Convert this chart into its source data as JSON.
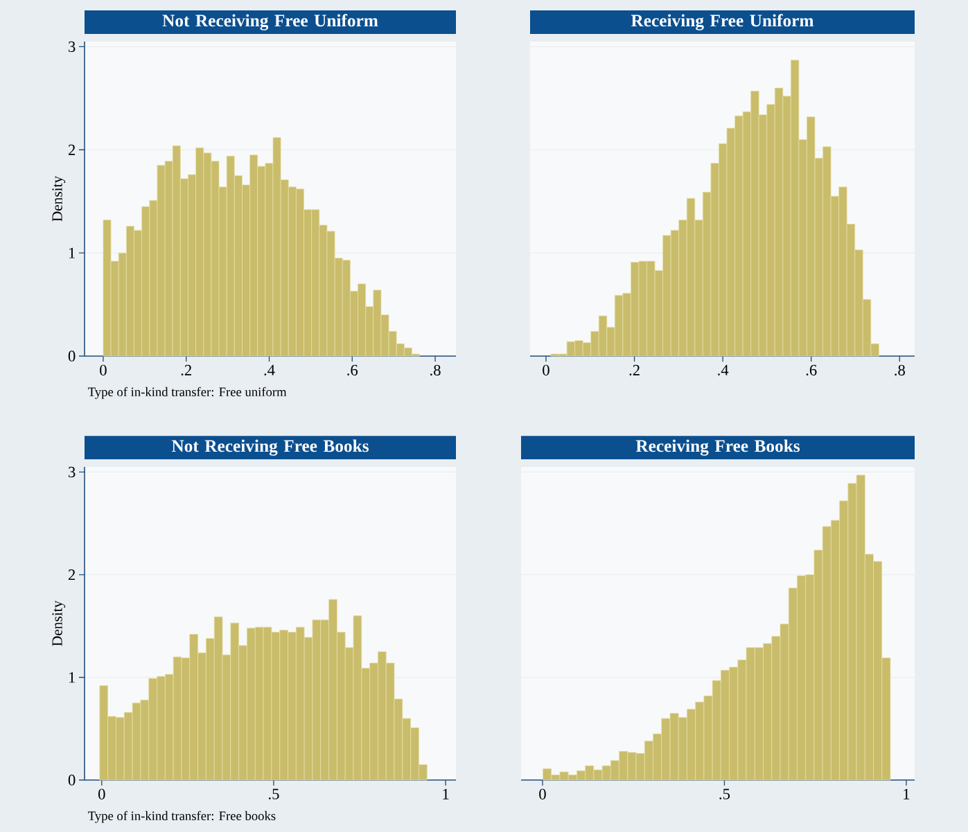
{
  "chart_data": [
    {
      "type": "histogram",
      "title": "Not Receiving Free Uniform",
      "xlabel": "Type of in-kind transfer: Free uniform",
      "ylabel": "Density",
      "color": "#c9bc6b",
      "grid": "y",
      "bins": [
        0,
        0.0186,
        0.0372,
        0.0558,
        0.0744,
        0.093,
        0.1116,
        0.1302,
        0.1488,
        0.1674,
        0.186,
        0.2046,
        0.2232,
        0.2418,
        0.2604,
        0.279,
        0.2976,
        0.3162,
        0.3348,
        0.3534,
        0.372,
        0.3906,
        0.4092,
        0.4278,
        0.4464,
        0.465,
        0.4836,
        0.5022,
        0.5208,
        0.5394,
        0.558,
        0.5766,
        0.5952,
        0.6138,
        0.6324,
        0.651,
        0.6696,
        0.6882,
        0.7068,
        0.7254,
        0.744,
        0.7626
      ],
      "values": [
        1.32,
        0.92,
        1.0,
        1.26,
        1.22,
        1.45,
        1.51,
        1.85,
        1.89,
        2.04,
        1.72,
        1.76,
        2.02,
        1.97,
        1.89,
        1.64,
        1.94,
        1.75,
        1.66,
        1.95,
        1.84,
        1.87,
        2.12,
        1.71,
        1.64,
        1.62,
        1.42,
        1.42,
        1.27,
        1.21,
        0.95,
        0.93,
        0.63,
        0.7,
        0.48,
        0.64,
        0.4,
        0.24,
        0.12,
        0.08,
        0.02
      ],
      "xlim": [
        -0.045,
        0.85
      ],
      "xticks": [
        0,
        {
          "value": 0.2,
          "label": ".2"
        },
        {
          "value": 0.4,
          "label": ".4"
        },
        {
          "value": 0.6,
          "label": ".6"
        },
        {
          "value": 0.8,
          "label": ".8"
        }
      ],
      "ylim": [
        0,
        3.05
      ],
      "yticks": [
        0,
        1,
        2,
        3
      ]
    },
    {
      "type": "histogram",
      "title": "Receiving Free Uniform",
      "color": "#c9bc6b",
      "grid": "y",
      "tick_labels": "x",
      "bins": [
        0.011,
        0.0291,
        0.0472,
        0.0653,
        0.0834,
        0.1015,
        0.1196,
        0.1377,
        0.1558,
        0.1739,
        0.192,
        0.2101,
        0.2282,
        0.2463,
        0.2644,
        0.2825,
        0.3006,
        0.3187,
        0.3368,
        0.3549,
        0.373,
        0.3911,
        0.4092,
        0.4273,
        0.4454,
        0.4635,
        0.4816,
        0.4997,
        0.5178,
        0.5359,
        0.554,
        0.5721,
        0.5902,
        0.6083,
        0.6264,
        0.6445,
        0.6626,
        0.6807,
        0.6988,
        0.7169,
        0.735,
        0.7531
      ],
      "values": [
        0.02,
        0.02,
        0.14,
        0.15,
        0.13,
        0.24,
        0.39,
        0.28,
        0.59,
        0.61,
        0.91,
        0.92,
        0.92,
        0.83,
        1.17,
        1.22,
        1.32,
        1.53,
        1.32,
        1.59,
        1.87,
        2.06,
        2.21,
        2.33,
        2.37,
        2.57,
        2.34,
        2.44,
        2.6,
        2.52,
        2.87,
        2.1,
        2.32,
        1.92,
        2.03,
        1.55,
        1.64,
        1.28,
        1.03,
        0.55,
        0.12
      ],
      "xlim": [
        -0.036,
        0.834
      ],
      "xticks": [
        0,
        {
          "value": 0.2,
          "label": ".2"
        },
        {
          "value": 0.4,
          "label": ".4"
        },
        {
          "value": 0.6,
          "label": ".6"
        },
        {
          "value": 0.8,
          "label": ".8"
        }
      ],
      "ylim": [
        0,
        3.05
      ],
      "yticks": [
        0,
        1,
        2,
        3
      ]
    },
    {
      "type": "histogram",
      "title": "Not Receiving Free Books",
      "xlabel": "Type of in-kind transfer: Free books",
      "ylabel": "Density",
      "color": "#c9bc6b",
      "grid": "y",
      "bins": [
        -0.006,
        0.0178,
        0.0416,
        0.0654,
        0.0892,
        0.113,
        0.1368,
        0.1606,
        0.1844,
        0.2082,
        0.232,
        0.2558,
        0.2796,
        0.3034,
        0.3272,
        0.351,
        0.3748,
        0.3986,
        0.4224,
        0.4462,
        0.47,
        0.4938,
        0.5176,
        0.5414,
        0.5652,
        0.589,
        0.6128,
        0.6366,
        0.6604,
        0.6842,
        0.708,
        0.7318,
        0.7556,
        0.7794,
        0.8032,
        0.827,
        0.8508,
        0.8746,
        0.8984,
        0.9222,
        0.946
      ],
      "values": [
        0.92,
        0.62,
        0.61,
        0.66,
        0.75,
        0.78,
        0.99,
        1.01,
        1.03,
        1.2,
        1.19,
        1.42,
        1.24,
        1.38,
        1.59,
        1.22,
        1.53,
        1.31,
        1.48,
        1.49,
        1.49,
        1.44,
        1.46,
        1.44,
        1.49,
        1.39,
        1.56,
        1.56,
        1.76,
        1.44,
        1.29,
        1.6,
        1.09,
        1.14,
        1.25,
        1.14,
        0.79,
        0.6,
        0.51,
        0.15
      ],
      "xlim": [
        -0.05,
        1.03
      ],
      "xticks": [
        0,
        {
          "value": 0.5,
          "label": ".5"
        },
        1
      ],
      "ylim": [
        0,
        3.05
      ],
      "yticks": [
        0,
        1,
        2,
        3
      ]
    },
    {
      "type": "histogram",
      "title": "Receiving Free Books",
      "color": "#c9bc6b",
      "grid": "y",
      "tick_labels": "x",
      "bins": [
        0.001,
        0.0243,
        0.0476,
        0.0709,
        0.0942,
        0.1175,
        0.1408,
        0.1641,
        0.1874,
        0.2107,
        0.234,
        0.2573,
        0.2806,
        0.3039,
        0.3272,
        0.3505,
        0.3738,
        0.3971,
        0.4204,
        0.4437,
        0.467,
        0.4903,
        0.5136,
        0.5369,
        0.5602,
        0.5835,
        0.6068,
        0.6301,
        0.6534,
        0.6767,
        0.7,
        0.7233,
        0.7466,
        0.7699,
        0.7932,
        0.8165,
        0.8398,
        0.8631,
        0.8864,
        0.9097,
        0.933,
        0.9563
      ],
      "values": [
        0.11,
        0.05,
        0.08,
        0.05,
        0.09,
        0.14,
        0.1,
        0.14,
        0.19,
        0.28,
        0.27,
        0.26,
        0.38,
        0.45,
        0.6,
        0.65,
        0.61,
        0.69,
        0.76,
        0.82,
        0.97,
        1.07,
        1.1,
        1.17,
        1.29,
        1.29,
        1.33,
        1.4,
        1.52,
        1.87,
        1.99,
        2.0,
        2.24,
        2.47,
        2.53,
        2.72,
        2.89,
        2.97,
        2.2,
        2.13,
        1.19
      ],
      "xlim": [
        -0.059,
        1.023
      ],
      "xticks": [
        0,
        {
          "value": 0.5,
          "label": ".5"
        },
        1
      ],
      "ylim": [
        0,
        3.05
      ],
      "yticks": [
        0,
        1,
        2,
        3
      ]
    }
  ]
}
